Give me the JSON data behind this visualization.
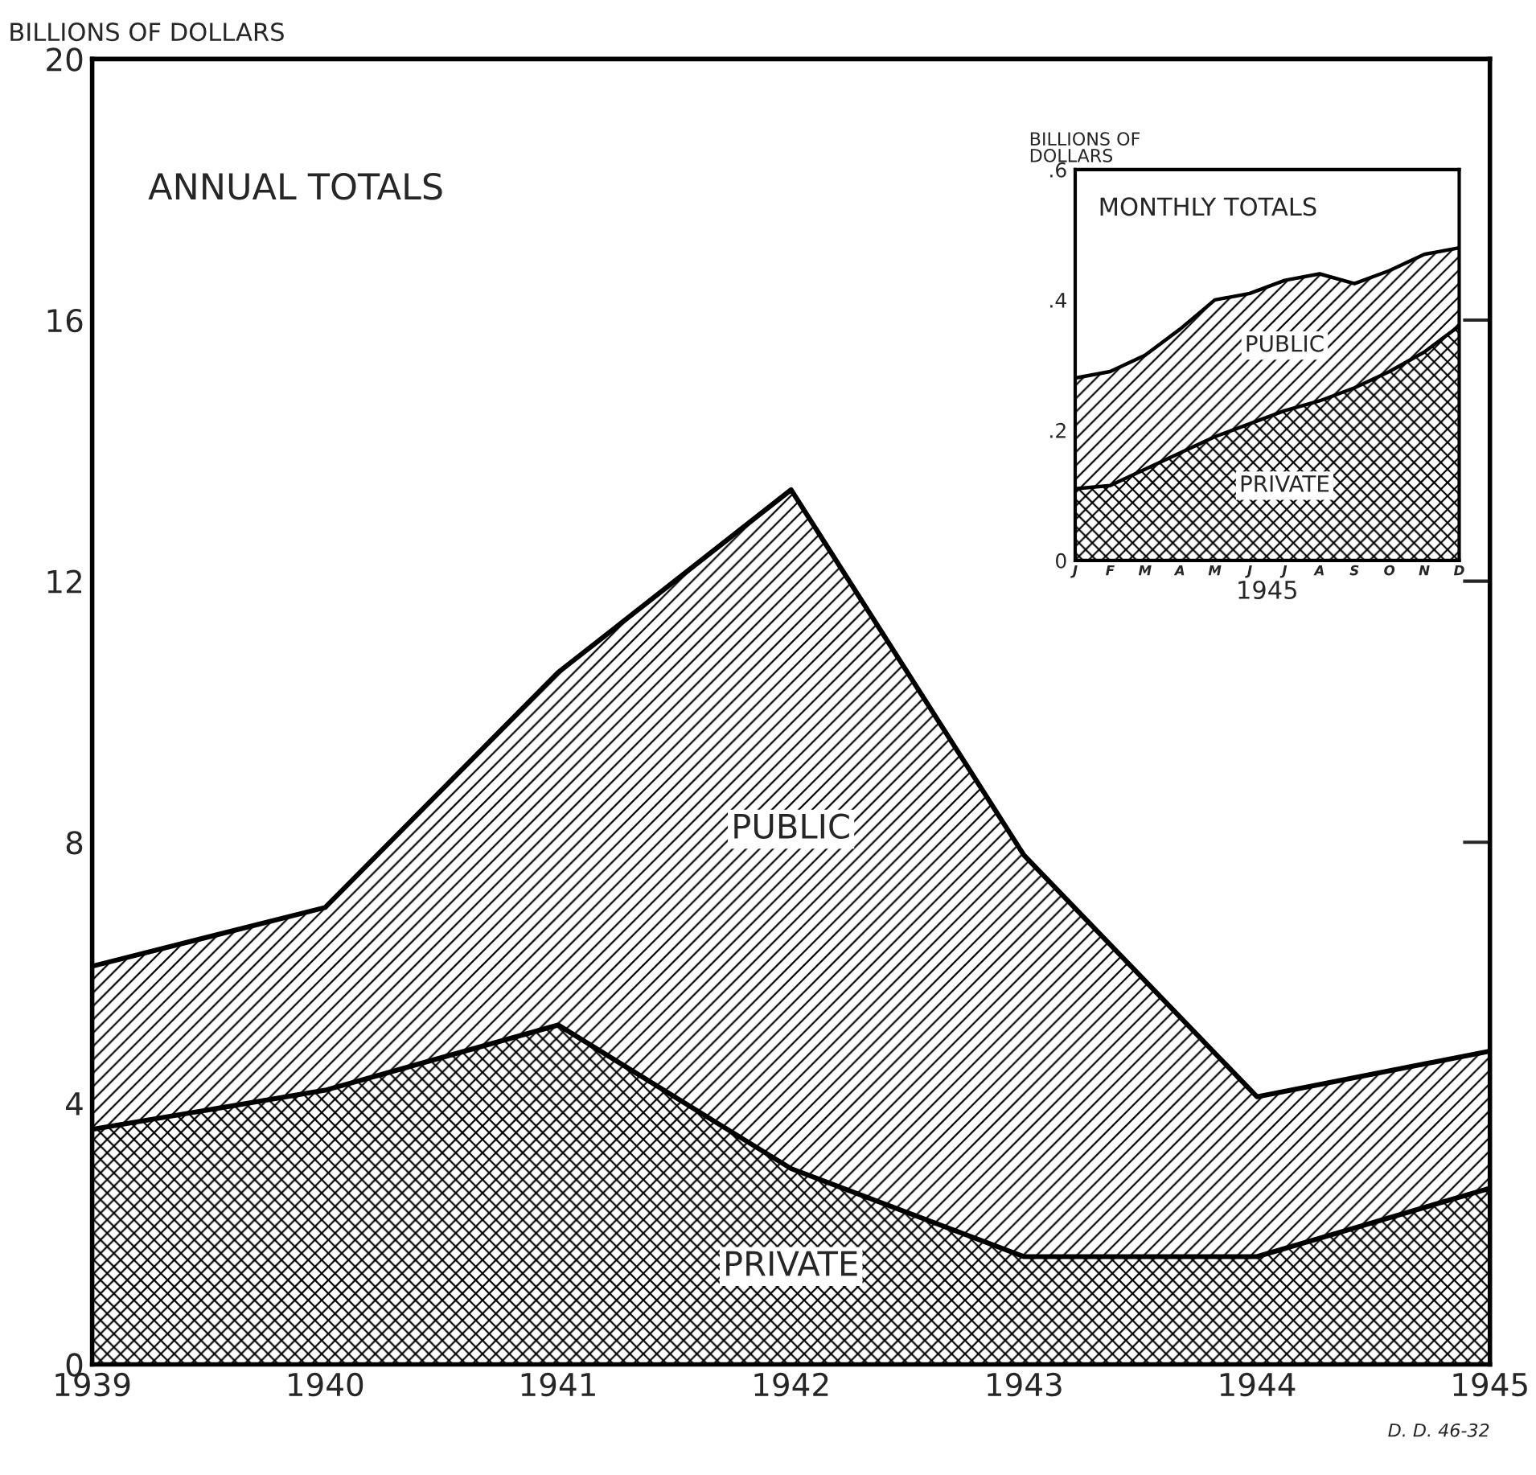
{
  "chart_data": [
    {
      "type": "area",
      "title": "ANNUAL TOTALS",
      "ylabel": "BILLIONS OF DOLLARS",
      "stacked": true,
      "x": [
        1939,
        1940,
        1941,
        1942,
        1943,
        1944,
        1945
      ],
      "series": [
        {
          "name": "PRIVATE",
          "color": "#000000",
          "values": [
            3.6,
            4.2,
            5.2,
            3.0,
            1.65,
            1.65,
            2.7
          ]
        },
        {
          "name": "PUBLIC",
          "color": "#000000",
          "values": [
            2.5,
            2.8,
            5.4,
            10.4,
            6.15,
            2.45,
            2.1
          ]
        }
      ],
      "xlim": [
        1939,
        1945
      ],
      "xticks": [
        1939,
        1940,
        1941,
        1942,
        1943,
        1944,
        1945
      ],
      "ylim": [
        0,
        20
      ],
      "yticks": [
        0,
        4,
        8,
        12,
        16,
        20
      ],
      "annotations": [
        "D. D. 46-32"
      ]
    },
    {
      "type": "area",
      "title": "MONTHLY TOTALS",
      "ylabel": "BILLIONS OF\nDOLLARS",
      "xlabel": "1945",
      "stacked": true,
      "categories": [
        "J",
        "F",
        "M",
        "A",
        "M",
        "J",
        "J",
        "A",
        "S",
        "O",
        "N",
        "D"
      ],
      "series": [
        {
          "name": "PRIVATE",
          "color": "#000000",
          "values": [
            0.11,
            0.115,
            0.14,
            0.165,
            0.19,
            0.21,
            0.23,
            0.245,
            0.265,
            0.29,
            0.32,
            0.36
          ]
        },
        {
          "name": "PUBLIC",
          "color": "#000000",
          "values": [
            0.17,
            0.175,
            0.175,
            0.19,
            0.21,
            0.2,
            0.2,
            0.195,
            0.16,
            0.155,
            0.15,
            0.12
          ]
        }
      ],
      "ylim": [
        0,
        0.6
      ],
      "yticks": [
        {
          "value": 0,
          "label": "0"
        },
        {
          "value": 0.2,
          "label": ".2"
        },
        {
          "value": 0.4,
          "label": ".4"
        },
        {
          "value": 0.6,
          "label": ".6"
        }
      ]
    }
  ]
}
